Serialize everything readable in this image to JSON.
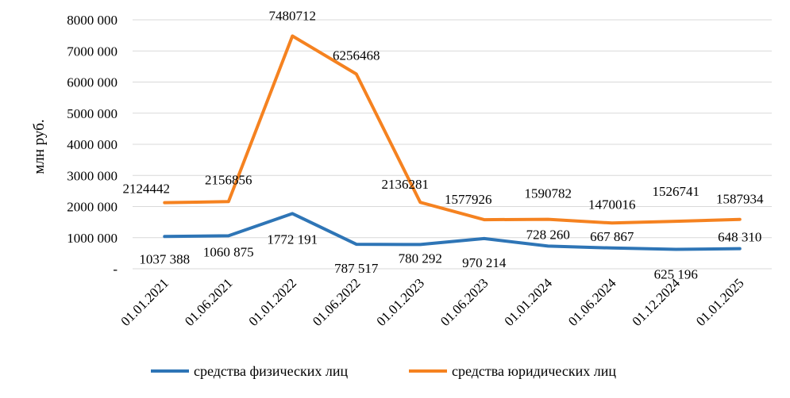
{
  "chart_data": {
    "type": "line",
    "ylabel": "млн руб.",
    "xlabel": "",
    "ylim": [
      0,
      8000000
    ],
    "grid": "horizontal",
    "legend_position": "bottom",
    "categories": [
      "01.01.2021",
      "01.06.2021",
      "01.01.2022",
      "01.06.2022",
      "01.01.2023",
      "01.06.2023",
      "01.01.2024",
      "01.06.2024",
      "01.12.2024",
      "01.01.2025"
    ],
    "y_ticks": [
      {
        "value": 0,
        "label": "-"
      },
      {
        "value": 1000000,
        "label": "1000 000"
      },
      {
        "value": 2000000,
        "label": "2000 000"
      },
      {
        "value": 3000000,
        "label": "3000 000"
      },
      {
        "value": 4000000,
        "label": "4000 000"
      },
      {
        "value": 5000000,
        "label": "5000 000"
      },
      {
        "value": 6000000,
        "label": "6000 000"
      },
      {
        "value": 7000000,
        "label": "7000 000"
      },
      {
        "value": 8000000,
        "label": "8000 000"
      }
    ],
    "series": [
      {
        "name": "средства физических лиц",
        "color": "#2e75b6",
        "values": [
          1037388,
          1060875,
          1772191,
          787517,
          780292,
          970214,
          728260,
          667867,
          625196,
          648310
        ],
        "labels": [
          "1037 388",
          "1060 875",
          "1772 191",
          "787 517",
          "780 292",
          "970 214",
          "728 260",
          "667 867",
          "625 196",
          "648 310"
        ]
      },
      {
        "name": "средства юридических лиц",
        "color": "#f58220",
        "values": [
          2124442,
          2156856,
          7480712,
          6256468,
          2136281,
          1577926,
          1590782,
          1470016,
          1526741,
          1587934
        ],
        "labels": [
          "2124442",
          "2156856",
          "7480712",
          "6256468",
          "2136281",
          "1577926",
          "1590782",
          "1470016",
          "1526741",
          "1587934"
        ]
      }
    ]
  }
}
